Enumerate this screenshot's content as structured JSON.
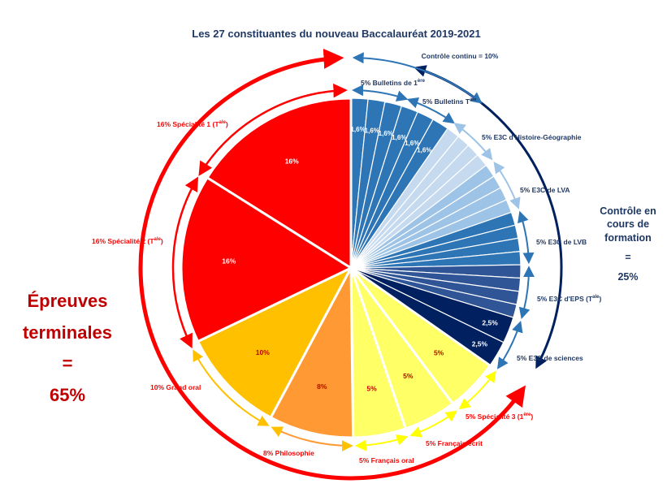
{
  "chart_data": {
    "type": "pie",
    "title": "Les 27 constituantes du nouveau Baccalauréat 2019-2021",
    "slices": [
      {
        "value": 1.6,
        "color": "#2e75b6",
        "label": "1,6%"
      },
      {
        "value": 1.6,
        "color": "#2e75b6",
        "label": "1,6%"
      },
      {
        "value": 1.6,
        "color": "#2e75b6",
        "label": "1,6%"
      },
      {
        "value": 1.6,
        "color": "#2e75b6",
        "label": "1,6%"
      },
      {
        "value": 1.6,
        "color": "#2e75b6",
        "label": "1,6%"
      },
      {
        "value": 1.6,
        "color": "#2e75b6",
        "label": "1,6%"
      },
      {
        "value": 1.25,
        "color": "#c5d9ef",
        "label": ""
      },
      {
        "value": 1.25,
        "color": "#c5d9ef",
        "label": ""
      },
      {
        "value": 1.25,
        "color": "#c5d9ef",
        "label": ""
      },
      {
        "value": 1.25,
        "color": "#c5d9ef",
        "label": ""
      },
      {
        "value": 1.25,
        "color": "#9dc3e6",
        "label": ""
      },
      {
        "value": 1.25,
        "color": "#9dc3e6",
        "label": ""
      },
      {
        "value": 1.25,
        "color": "#9dc3e6",
        "label": ""
      },
      {
        "value": 1.25,
        "color": "#9dc3e6",
        "label": ""
      },
      {
        "value": 1.25,
        "color": "#2e75b6",
        "label": ""
      },
      {
        "value": 1.25,
        "color": "#2e75b6",
        "label": ""
      },
      {
        "value": 1.25,
        "color": "#2e75b6",
        "label": ""
      },
      {
        "value": 1.25,
        "color": "#2e75b6",
        "label": ""
      },
      {
        "value": 1.25,
        "color": "#2f5597",
        "label": ""
      },
      {
        "value": 1.25,
        "color": "#2f5597",
        "label": ""
      },
      {
        "value": 1.25,
        "color": "#2f5597",
        "label": ""
      },
      {
        "value": 1.25,
        "color": "#2f5597",
        "label": ""
      },
      {
        "value": 2.5,
        "color": "#002060",
        "label": "2,5%"
      },
      {
        "value": 2.5,
        "color": "#002060",
        "label": "2,5%"
      },
      {
        "value": 5,
        "color": "#ffff66",
        "label": "5%"
      },
      {
        "value": 5,
        "color": "#ffff66",
        "label": "5%"
      },
      {
        "value": 5,
        "color": "#ffff66",
        "label": "5%"
      },
      {
        "value": 8,
        "color": "#ff9933",
        "label": "8%"
      },
      {
        "value": 10,
        "color": "#ffc000",
        "label": "10%"
      },
      {
        "value": 16,
        "color": "#ff0000",
        "label": "16%"
      },
      {
        "value": 16,
        "color": "#ff0000",
        "label": "16%"
      }
    ],
    "categories": [
      "Contrôle continu = 10%",
      "5% Bulletins de 1ère",
      "5% Bulletins Tale",
      "5% E3C d'Histoire-Géographie",
      "5% E3C de LVA",
      "5% E3C de LVB",
      "5% E3C d'EPS (Tale)",
      "5% E3C de sciences",
      "5% Spécialité 3 (1ère)",
      "5% Français écrit",
      "5% Français oral",
      "8% Philosophie",
      "10% Grand oral",
      "16% Spécialité 2 (Tale)",
      "16% Spécialité 1 (Tale)"
    ]
  },
  "labels": {
    "controle_continu": "Contrôle continu = 10%",
    "bulletins_1": {
      "text": "5% Bulletins de 1",
      "sup": "ère"
    },
    "bulletins_t": {
      "text": "5% Bulletins T",
      "sup": "ale"
    },
    "e3c_hg": "5% E3C d'Histoire-Géographie",
    "e3c_lva": "5% E3C de LVA",
    "e3c_lvb": "5% E3C de LVB",
    "e3c_eps": {
      "text": "5% E3C d'EPS (T",
      "sup": "ale",
      "end": ")"
    },
    "e3c_sciences": "5% E3C de sciences",
    "specialite3": {
      "text": "5% Spécialité 3 (1",
      "sup": "ère",
      "end": ")"
    },
    "francais_ecrit": "5% Français écrit",
    "francais_oral": "5% Français oral",
    "philosophie": "8% Philosophie",
    "grand_oral": "10% Grand oral",
    "specialite2": {
      "text": "16% Spécialité 2 (T",
      "sup": "ale",
      "end": ")"
    },
    "specialite1": {
      "text": "16% Spécialité 1 (T",
      "sup": "ale",
      "end": ")"
    }
  },
  "left_note": {
    "line1": "Épreuves",
    "line2": "terminales",
    "line3": "=",
    "line4": "65%"
  },
  "right_note": {
    "line1": "Contrôle en",
    "line2": "cours de",
    "line3": "formation",
    "line4": "=",
    "line5": "25%"
  },
  "colors": {
    "red": "#ff0000",
    "dark_red": "#c00000",
    "navy": "#1f3864",
    "blue": "#2e75b6",
    "orange": "#ffc000",
    "yellow": "#ffff66"
  }
}
